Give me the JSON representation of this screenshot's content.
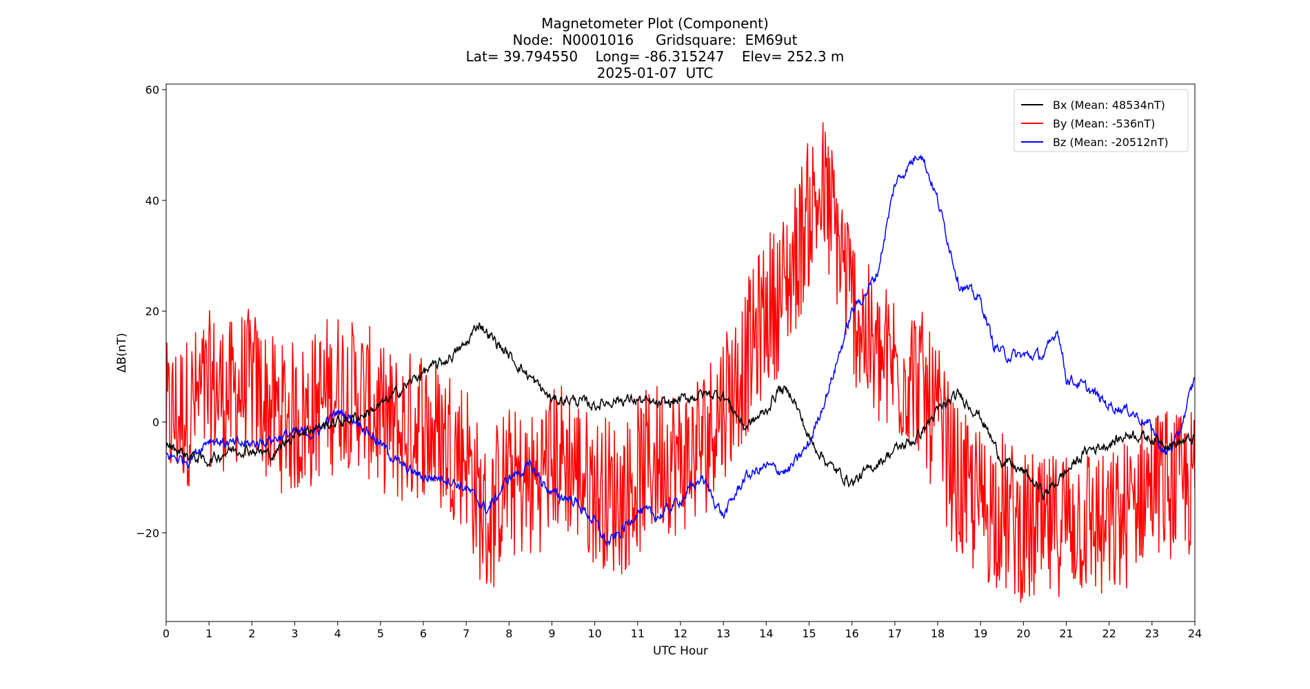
{
  "header": {
    "title": "Magnetometer Plot (Component)",
    "line2": "Node:  N0001016     Gridsquare:  EM69ut",
    "line3": "Lat= 39.794550    Long= -86.315247    Elev= 252.3 m",
    "line4": "2025-01-07  UTC"
  },
  "chart_data": {
    "type": "line",
    "title": "Magnetometer Plot (Component)",
    "xlabel": "UTC Hour",
    "ylabel": "ΔB(nT)",
    "xlim": [
      0,
      24
    ],
    "ylim": [
      -36,
      61
    ],
    "xticks": [
      0,
      1,
      2,
      3,
      4,
      5,
      6,
      7,
      8,
      9,
      10,
      11,
      12,
      13,
      14,
      15,
      16,
      17,
      18,
      19,
      20,
      21,
      22,
      23,
      24
    ],
    "yticks": [
      -20,
      0,
      20,
      40,
      60
    ],
    "ytick_labels": [
      "−20",
      "0",
      "20",
      "40",
      "60"
    ],
    "legend_position": "top-right",
    "series": [
      {
        "name": "Bx (Mean: 48534nT)",
        "color": "#000000",
        "x": [
          0,
          0.5,
          1,
          1.5,
          2,
          2.5,
          3,
          3.5,
          4,
          4.5,
          5,
          5.5,
          6,
          6.5,
          7,
          7.3,
          7.5,
          8,
          8.5,
          9,
          9.5,
          10,
          10.5,
          11,
          11.5,
          12,
          12.5,
          13,
          13.5,
          14,
          14.3,
          14.6,
          15,
          15.5,
          16,
          16.5,
          17,
          17.5,
          18,
          18.5,
          19,
          19.5,
          20,
          20.5,
          21,
          21.5,
          22,
          22.5,
          23,
          23.5,
          24
        ],
        "y": [
          -4,
          -6,
          -7,
          -5,
          -5,
          -6,
          -2,
          -1,
          0,
          1,
          3,
          6,
          9,
          11,
          14,
          18,
          16,
          12,
          8,
          4,
          4,
          3,
          4,
          4,
          3,
          4,
          5,
          5,
          -1,
          2,
          6,
          5,
          -3,
          -8,
          -11,
          -8,
          -5,
          -3,
          2,
          5,
          1,
          -7,
          -9,
          -13,
          -9,
          -5,
          -4,
          -2,
          -3,
          -4,
          -3
        ]
      },
      {
        "name": "By (Mean: -536nT)",
        "color": "#ff0000",
        "x": [
          0,
          0.5,
          1,
          1.5,
          2,
          2.5,
          3,
          3.5,
          4,
          4.5,
          5,
          5.5,
          6,
          6.5,
          7,
          7.3,
          7.5,
          8,
          8.5,
          9,
          9.5,
          10,
          10.5,
          11,
          11.5,
          12,
          12.5,
          13,
          13.5,
          14,
          14.5,
          15,
          15.3,
          15.6,
          16,
          16.5,
          17,
          17.5,
          18,
          18.5,
          19,
          19.5,
          20,
          20.5,
          21,
          21.5,
          22,
          22.5,
          23,
          23.5,
          24
        ],
        "y": [
          0,
          2,
          6,
          5,
          7,
          2,
          0,
          3,
          6,
          5,
          0,
          -2,
          0,
          -3,
          -5,
          -15,
          -18,
          -10,
          -12,
          -6,
          -8,
          -12,
          -14,
          -10,
          -6,
          -8,
          -4,
          4,
          10,
          20,
          25,
          38,
          42,
          35,
          22,
          12,
          10,
          8,
          0,
          -12,
          -15,
          -16,
          -20,
          -20,
          -18,
          -18,
          -20,
          -16,
          -10,
          -12,
          -12
        ],
        "noise_amplitude": 14
      },
      {
        "name": "Bz (Mean: -20512nT)",
        "color": "#0000ff",
        "x": [
          0,
          0.5,
          1,
          1.5,
          2,
          2.5,
          3,
          3.5,
          4,
          4.5,
          5,
          5.5,
          6,
          6.5,
          7,
          7.5,
          8,
          8.5,
          9,
          9.5,
          10,
          10.3,
          10.6,
          11,
          11.5,
          12,
          12.5,
          13,
          13.5,
          14,
          14.5,
          15,
          15.5,
          16,
          16.3,
          16.6,
          17,
          17.3,
          17.6,
          18,
          18.5,
          19,
          19.3,
          19.6,
          20,
          20.5,
          20.8,
          21,
          21.5,
          22,
          22.5,
          23,
          23.3,
          23.6,
          24
        ],
        "y": [
          -6,
          -7,
          -3,
          -4,
          -4,
          -3,
          -2,
          -2,
          2,
          0,
          -4,
          -8,
          -10,
          -10,
          -12,
          -16,
          -10,
          -8,
          -13,
          -14,
          -18,
          -22,
          -20,
          -16,
          -17,
          -14,
          -10,
          -17,
          -10,
          -8,
          -9,
          -4,
          7,
          20,
          23,
          27,
          43,
          46,
          49,
          40,
          25,
          22,
          14,
          12,
          12,
          12,
          17,
          8,
          6,
          3,
          2,
          -1,
          -6,
          -3,
          8
        ]
      }
    ]
  }
}
